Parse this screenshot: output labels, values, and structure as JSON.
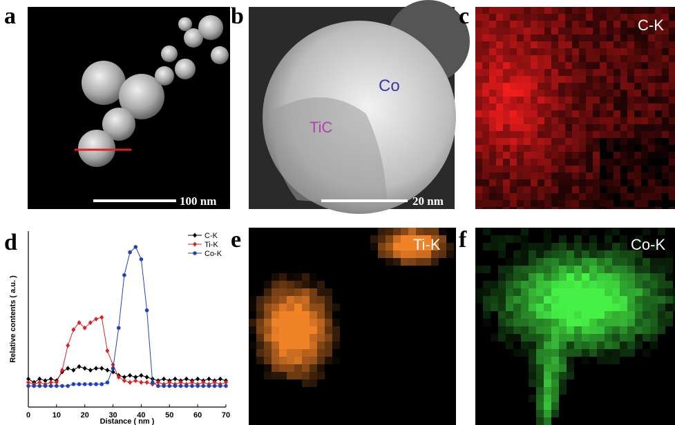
{
  "panels": [
    {
      "letter": "a",
      "scale_bar": "100 nm"
    },
    {
      "letter": "b",
      "scale_bar": "20 nm",
      "labels": [
        "Co",
        "TiC"
      ]
    },
    {
      "letter": "c",
      "label": "C-K"
    },
    {
      "letter": "d"
    },
    {
      "letter": "e",
      "label": "Ti-K"
    },
    {
      "letter": "f",
      "label": "Co-K"
    }
  ],
  "chart_data": {
    "type": "line",
    "xlabel": "Distance ( nm )",
    "ylabel": "Relative contents ( a.u. )",
    "x": [
      0,
      2,
      4,
      6,
      8,
      10,
      12,
      14,
      16,
      18,
      20,
      22,
      24,
      26,
      28,
      30,
      32,
      34,
      36,
      38,
      40,
      42,
      44,
      46,
      48,
      50,
      52,
      54,
      56,
      58,
      60,
      62,
      64,
      66,
      68,
      70
    ],
    "xlim": [
      0,
      70
    ],
    "xticks": [
      0,
      10,
      20,
      30,
      40,
      50,
      60,
      70
    ],
    "ylim": [
      0,
      100
    ],
    "series": [
      {
        "name": "C-K",
        "color": "#000000",
        "marker": "diamond",
        "values": [
          16,
          14,
          16,
          15,
          16,
          15,
          20,
          22,
          21,
          23,
          22,
          21,
          22,
          22,
          21,
          20,
          18,
          17,
          18,
          17,
          18,
          17,
          16,
          15,
          16,
          15,
          16,
          15,
          16,
          15,
          16,
          15,
          16,
          15,
          16,
          15
        ]
      },
      {
        "name": "Ti-K",
        "color": "#e02020",
        "marker": "diamond",
        "values": [
          14,
          13,
          14,
          13,
          14,
          14,
          21,
          35,
          44,
          48,
          45,
          48,
          50,
          51,
          32,
          24,
          17,
          15,
          14,
          15,
          14,
          14,
          13,
          14,
          13,
          14,
          13,
          14,
          13,
          14,
          13,
          14,
          13,
          14,
          13,
          14
        ]
      },
      {
        "name": "Co-K",
        "color": "#2040c0",
        "marker": "circle",
        "values": [
          12,
          12,
          12,
          12,
          12,
          12,
          12,
          12,
          13,
          13,
          13,
          13,
          13,
          13,
          14,
          22,
          45,
          75,
          88,
          91,
          84,
          55,
          14,
          12,
          12,
          12,
          12,
          12,
          12,
          12,
          12,
          12,
          12,
          12,
          12,
          12
        ]
      }
    ]
  }
}
